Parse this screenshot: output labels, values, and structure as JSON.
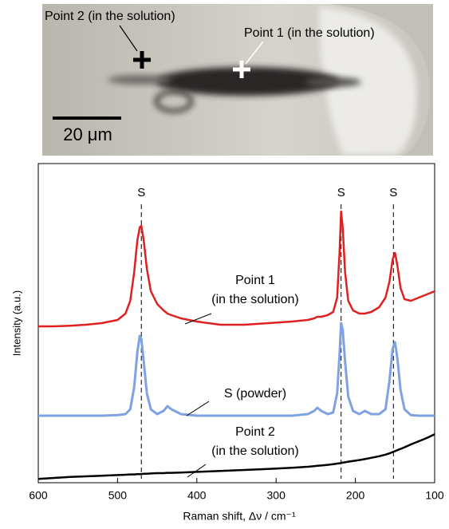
{
  "micrograph": {
    "labels": [
      "Point 2 (in the solution)",
      "Point 1 (in the solution)"
    ],
    "scale_bar": "20 μm"
  },
  "chart_data": {
    "type": "line",
    "xlabel": "Raman shift, Δν / cm⁻¹",
    "ylabel": "Intensity (a.u.)",
    "xlim": [
      600,
      100
    ],
    "xticks": [
      600,
      500,
      400,
      300,
      200,
      100
    ],
    "ylim": [
      0,
      100
    ],
    "x": [
      600,
      580,
      560,
      540,
      520,
      500,
      490,
      484,
      479,
      475,
      472,
      470,
      467,
      463,
      458,
      450,
      442,
      437,
      432,
      420,
      400,
      370,
      340,
      310,
      280,
      260,
      252,
      248,
      243,
      235,
      228,
      223,
      220,
      218,
      216,
      213,
      209,
      203,
      195,
      188,
      180,
      170,
      162,
      157,
      153,
      150,
      147,
      143,
      138,
      130,
      120,
      110,
      100
    ],
    "series": [
      {
        "label_lines": [
          "Point 1",
          "(in the solution)"
        ],
        "color": "#e02020",
        "values": [
          49,
          49,
          49.2,
          49.5,
          50,
          51,
          53,
          57,
          66,
          76,
          80,
          80.5,
          76,
          67,
          60,
          56,
          54,
          53,
          52.5,
          51.5,
          50.5,
          49.5,
          49.5,
          50,
          50.5,
          51,
          51.5,
          52,
          52,
          52.5,
          53.5,
          58,
          72,
          85,
          80,
          66,
          57,
          54,
          53,
          53,
          53.5,
          55,
          58,
          63,
          70,
          72,
          68,
          61,
          57.5,
          57,
          58,
          59,
          60
        ]
      },
      {
        "label_lines": [
          "S (powder)"
        ],
        "color": "#7fa2e2",
        "values": [
          21,
          21,
          21,
          21,
          21,
          21.2,
          21.5,
          23,
          30,
          41,
          46,
          45,
          38,
          28,
          23,
          21.5,
          22.5,
          24,
          23,
          21.5,
          21,
          21,
          21,
          21,
          21,
          21.5,
          22.5,
          23.5,
          22.5,
          21.5,
          22,
          28,
          40,
          50,
          48,
          38,
          27,
          22.5,
          21.5,
          22.5,
          21.5,
          21.5,
          23,
          32,
          42,
          44,
          39,
          29,
          23,
          21.2,
          21,
          21,
          21
        ]
      },
      {
        "label_lines": [
          "Point 2",
          "(in the solution)"
        ],
        "color": "#000000",
        "values": [
          1.2,
          1.5,
          1.8,
          2,
          2.2,
          2.4,
          2.5,
          2.6,
          2.6,
          2.7,
          2.7,
          2.7,
          2.8,
          2.8,
          2.9,
          3,
          3,
          3.1,
          3.1,
          3.2,
          3.4,
          3.7,
          4,
          4.3,
          4.7,
          5,
          5.2,
          5.3,
          5.4,
          5.6,
          5.8,
          6,
          6.1,
          6.2,
          6.3,
          6.4,
          6.6,
          6.8,
          7.1,
          7.4,
          7.8,
          8.3,
          8.8,
          9.2,
          9.6,
          9.9,
          10.2,
          10.6,
          11.1,
          12,
          13,
          14,
          15.2
        ]
      }
    ],
    "annotations": [
      {
        "text": "S",
        "x": 470
      },
      {
        "text": "S",
        "x": 218
      },
      {
        "text": "S",
        "x": 152
      }
    ]
  }
}
